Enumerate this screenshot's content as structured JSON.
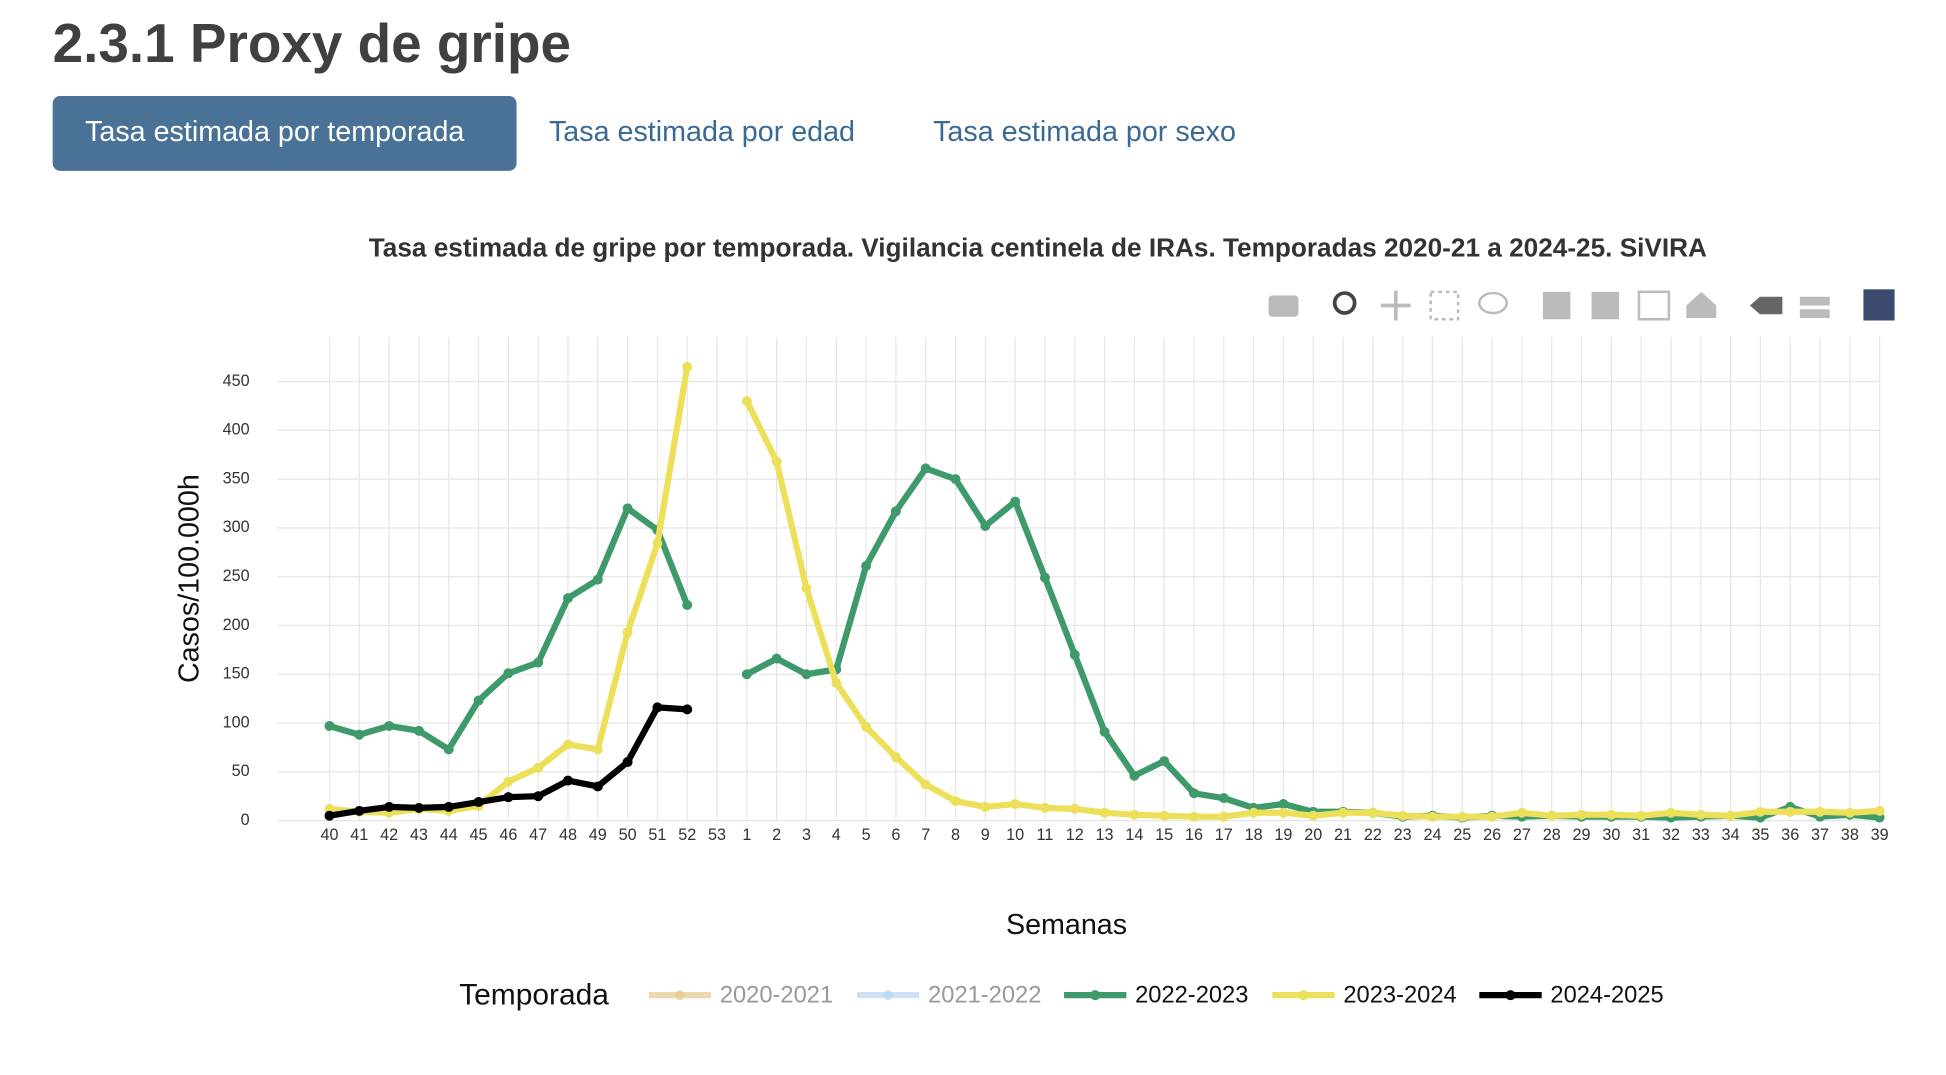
{
  "header": {
    "title": "2.3.1 Proxy de gripe"
  },
  "tabs": [
    {
      "label": "Tasa estimada por temporada",
      "active": true
    },
    {
      "label": "Tasa estimada por edad",
      "active": false
    },
    {
      "label": "Tasa estimada por sexo",
      "active": false
    }
  ],
  "chart_data": {
    "type": "line",
    "title": "Tasa estimada de gripe por temporada. Vigilancia centinela de IRAs. Temporadas 2020-21 a 2024-25. SiVIRA",
    "x_label": "Semanas",
    "y_label": "Casos/100.000h",
    "legend_title": "Temporada",
    "categories": [
      "40",
      "41",
      "42",
      "43",
      "44",
      "45",
      "46",
      "47",
      "48",
      "49",
      "50",
      "51",
      "52",
      "53",
      "1",
      "2",
      "3",
      "4",
      "5",
      "6",
      "7",
      "8",
      "9",
      "10",
      "11",
      "12",
      "13",
      "14",
      "15",
      "16",
      "17",
      "18",
      "19",
      "20",
      "21",
      "22",
      "23",
      "24",
      "25",
      "26",
      "27",
      "28",
      "29",
      "30",
      "31",
      "32",
      "33",
      "34",
      "35",
      "36",
      "37",
      "38",
      "39"
    ],
    "ylim": [
      0,
      496
    ],
    "yticks": [
      0,
      50,
      100,
      150,
      200,
      250,
      300,
      350,
      400,
      450
    ],
    "grid": true,
    "series": [
      {
        "name": "2020-2021",
        "color": "#e8c890",
        "visible": false
      },
      {
        "name": "2021-2022",
        "color": "#b8d8f0",
        "visible": false
      },
      {
        "name": "2022-2023",
        "color": "#3e9a6a",
        "visible": true,
        "values": [
          97,
          88,
          97,
          92,
          73,
          123,
          151,
          162,
          228,
          247,
          320,
          298,
          221,
          null,
          150,
          166,
          150,
          155,
          261,
          317,
          361,
          350,
          302,
          327,
          249,
          170,
          91,
          46,
          61,
          28,
          23,
          13,
          17,
          9,
          9,
          8,
          4,
          5,
          3,
          5,
          4,
          5,
          4,
          4,
          4,
          3,
          4,
          5,
          3,
          14,
          4,
          6,
          3
        ]
      },
      {
        "name": "2023-2024",
        "color": "#ece05a",
        "visible": true,
        "values": [
          12,
          9,
          8,
          12,
          10,
          15,
          40,
          54,
          78,
          73,
          193,
          284,
          465,
          null,
          430,
          368,
          238,
          141,
          96,
          65,
          37,
          20,
          14,
          17,
          13,
          12,
          8,
          6,
          5,
          4,
          4,
          8,
          8,
          5,
          8,
          8,
          5,
          4,
          4,
          4,
          8,
          5,
          6,
          6,
          5,
          8,
          6,
          5,
          9,
          9,
          9,
          8,
          10
        ]
      },
      {
        "name": "2024-2025",
        "color": "#000000",
        "visible": true,
        "values": [
          5,
          10,
          14,
          13,
          14,
          19,
          24,
          25,
          41,
          35,
          60,
          116,
          114,
          null,
          null,
          null,
          null,
          null,
          null,
          null,
          null,
          null,
          null,
          null,
          null,
          null,
          null,
          null,
          null,
          null,
          null,
          null,
          null,
          null,
          null,
          null,
          null,
          null,
          null,
          null,
          null,
          null,
          null,
          null,
          null,
          null,
          null,
          null,
          null,
          null,
          null,
          null,
          null
        ]
      }
    ]
  }
}
